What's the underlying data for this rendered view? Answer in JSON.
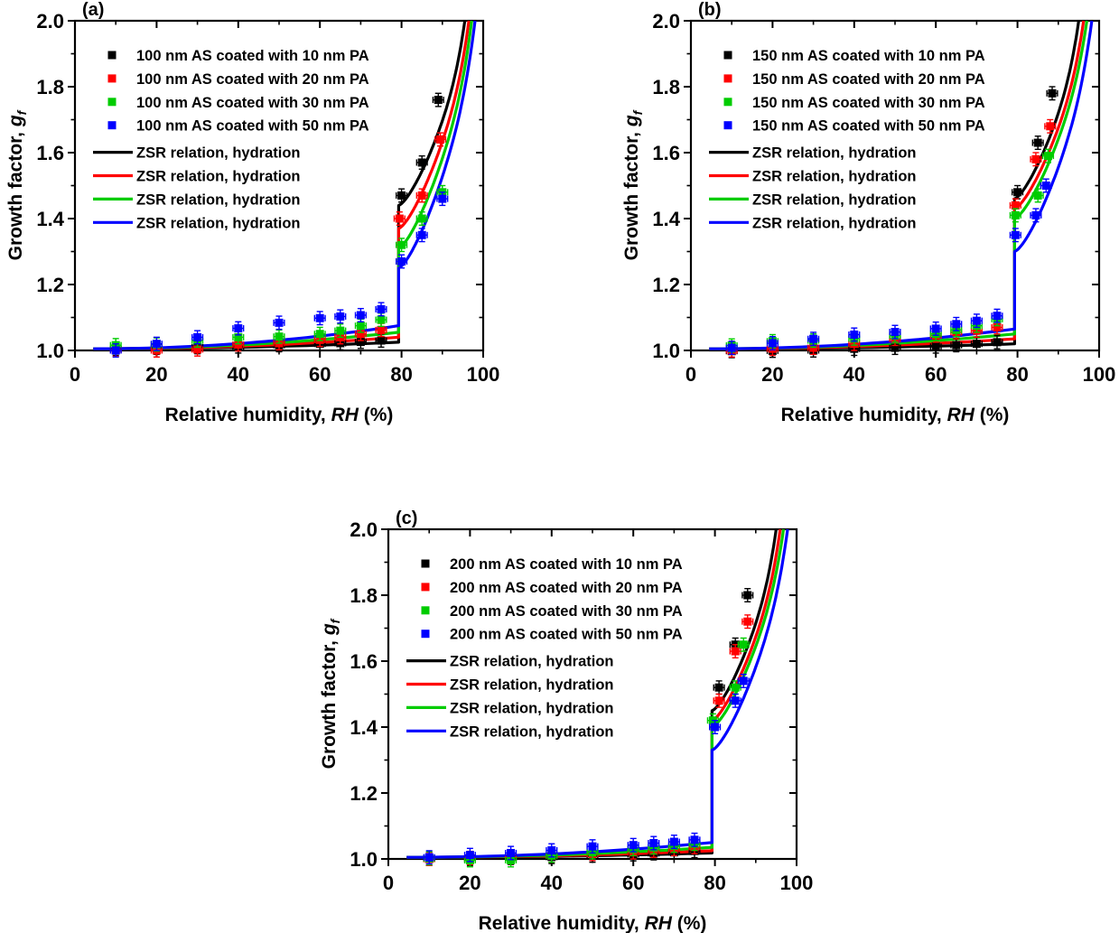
{
  "figure_title": "",
  "colors": {
    "series1": "#000000",
    "series2": "#ff0000",
    "series3": "#00cc00",
    "series4": "#0000ff",
    "axis": "#000000",
    "background": "#ffffff"
  },
  "chart_data": [
    {
      "type": "scatter+line",
      "panel_label": "(a)",
      "xlabel_parts": [
        "Relative humidity, ",
        "RH",
        " (%)"
      ],
      "ylabel_parts": [
        "Growth factor, ",
        "g",
        "f"
      ],
      "xlim": [
        0,
        100
      ],
      "ylim": [
        1.0,
        2.0
      ],
      "x_ticks": [
        0,
        20,
        40,
        60,
        80,
        100
      ],
      "x_tick_labels": [
        "0",
        "20",
        "40",
        "60",
        "80",
        "100"
      ],
      "x_minor_step": 10,
      "y_ticks": [
        1.0,
        1.2,
        1.4,
        1.6,
        1.8,
        2.0
      ],
      "y_tick_labels": [
        "1.0",
        "1.2",
        "1.4",
        "1.6",
        "1.8",
        "2.0"
      ],
      "y_minor_step": 0.1,
      "legend_position": "top-left-inside",
      "grid": false,
      "error_bars": {
        "x": 1.3,
        "y": 0.02
      },
      "scatter_series": [
        {
          "name": "100 nm AS coated with 10 nm PA",
          "color": "#000000",
          "points": [
            [
              10,
              1.005
            ],
            [
              20,
              1.008
            ],
            [
              30,
              1.01
            ],
            [
              40,
              1.012
            ],
            [
              50,
              1.016
            ],
            [
              60,
              1.02
            ],
            [
              65,
              1.022
            ],
            [
              70,
              1.026
            ],
            [
              75,
              1.03
            ],
            [
              80,
              1.47
            ],
            [
              85,
              1.57
            ],
            [
              89,
              1.76
            ]
          ]
        },
        {
          "name": "100 nm AS coated with 20 nm PA",
          "color": "#ff0000",
          "points": [
            [
              10,
              1.002
            ],
            [
              20,
              1.0
            ],
            [
              30,
              1.003
            ],
            [
              40,
              1.018
            ],
            [
              50,
              1.022
            ],
            [
              60,
              1.032
            ],
            [
              65,
              1.04
            ],
            [
              70,
              1.05
            ],
            [
              75,
              1.062
            ],
            [
              79.5,
              1.4
            ],
            [
              85,
              1.47
            ],
            [
              89.5,
              1.64
            ]
          ]
        },
        {
          "name": "100 nm AS coated with 30 nm PA",
          "color": "#00cc00",
          "points": [
            [
              10,
              1.016
            ],
            [
              20,
              1.018
            ],
            [
              30,
              1.03
            ],
            [
              40,
              1.04
            ],
            [
              50,
              1.042
            ],
            [
              60,
              1.05
            ],
            [
              65,
              1.06
            ],
            [
              70,
              1.075
            ],
            [
              75,
              1.093
            ],
            [
              80,
              1.32
            ],
            [
              85,
              1.4
            ],
            [
              90,
              1.48
            ]
          ]
        },
        {
          "name": "100 nm AS coated with 50 nm PA",
          "color": "#0000ff",
          "points": [
            [
              10,
              1.0
            ],
            [
              20,
              1.02
            ],
            [
              30,
              1.04
            ],
            [
              40,
              1.067
            ],
            [
              50,
              1.084
            ],
            [
              60,
              1.098
            ],
            [
              65,
              1.103
            ],
            [
              70,
              1.107
            ],
            [
              75,
              1.125
            ],
            [
              80,
              1.27
            ],
            [
              85,
              1.35
            ],
            [
              90,
              1.46
            ]
          ]
        }
      ],
      "line_series": [
        {
          "name": "ZSR relation, hydration",
          "color": "#000000",
          "start_rh": 4.5,
          "start_gf": 1.005,
          "jump_rh": 79.3,
          "pre_jump_gf": 1.025,
          "jump_top_gf": 1.44,
          "end_rh": 95.5,
          "end_gf": 2.0
        },
        {
          "name": "ZSR relation, hydration",
          "color": "#ff0000",
          "start_rh": 4.5,
          "start_gf": 1.005,
          "jump_rh": 79.3,
          "pre_jump_gf": 1.04,
          "jump_top_gf": 1.37,
          "end_rh": 96.5,
          "end_gf": 2.0
        },
        {
          "name": "ZSR relation, hydration",
          "color": "#00cc00",
          "start_rh": 4.5,
          "start_gf": 1.005,
          "jump_rh": 79.3,
          "pre_jump_gf": 1.055,
          "jump_top_gf": 1.31,
          "end_rh": 97.2,
          "end_gf": 2.0
        },
        {
          "name": "ZSR relation, hydration",
          "color": "#0000ff",
          "start_rh": 4.5,
          "start_gf": 1.005,
          "jump_rh": 79.3,
          "pre_jump_gf": 1.075,
          "jump_top_gf": 1.25,
          "end_rh": 98.0,
          "end_gf": 2.0
        }
      ]
    },
    {
      "type": "scatter+line",
      "panel_label": "(b)",
      "xlabel_parts": [
        "Relative humidity, ",
        "RH",
        " (%)"
      ],
      "ylabel_parts": [
        "Growth factor, ",
        "g",
        "f"
      ],
      "xlim": [
        0,
        100
      ],
      "ylim": [
        1.0,
        2.0
      ],
      "x_ticks": [
        0,
        20,
        40,
        60,
        80,
        100
      ],
      "x_tick_labels": [
        "0",
        "20",
        "40",
        "60",
        "80",
        "100"
      ],
      "x_minor_step": 10,
      "y_ticks": [
        1.0,
        1.2,
        1.4,
        1.6,
        1.8,
        2.0
      ],
      "y_tick_labels": [
        "1.0",
        "1.2",
        "1.4",
        "1.6",
        "1.8",
        "2.0"
      ],
      "y_minor_step": 0.1,
      "legend_position": "top-left-inside",
      "grid": false,
      "error_bars": {
        "x": 1.3,
        "y": 0.02
      },
      "scatter_series": [
        {
          "name": "150 nm AS coated with 10 nm PA",
          "color": "#000000",
          "points": [
            [
              10,
              0.998
            ],
            [
              20,
              0.999
            ],
            [
              30,
              1.0
            ],
            [
              40,
              1.005
            ],
            [
              50,
              1.008
            ],
            [
              60,
              1.012
            ],
            [
              65,
              1.016
            ],
            [
              70,
              1.02
            ],
            [
              75,
              1.025
            ],
            [
              80,
              1.48
            ],
            [
              85,
              1.63
            ],
            [
              88.5,
              1.78
            ]
          ]
        },
        {
          "name": "150 nm AS coated with 20 nm PA",
          "color": "#ff0000",
          "points": [
            [
              10,
              1.0
            ],
            [
              20,
              1.005
            ],
            [
              30,
              1.008
            ],
            [
              40,
              1.02
            ],
            [
              50,
              1.035
            ],
            [
              60,
              1.045
            ],
            [
              65,
              1.055
            ],
            [
              70,
              1.06
            ],
            [
              75,
              1.07
            ],
            [
              79.5,
              1.44
            ],
            [
              84.5,
              1.58
            ],
            [
              88,
              1.68
            ]
          ]
        },
        {
          "name": "150 nm AS coated with 30 nm PA",
          "color": "#00cc00",
          "points": [
            [
              10,
              1.015
            ],
            [
              20,
              1.028
            ],
            [
              30,
              1.03
            ],
            [
              40,
              1.036
            ],
            [
              50,
              1.045
            ],
            [
              60,
              1.05
            ],
            [
              65,
              1.062
            ],
            [
              70,
              1.075
            ],
            [
              75,
              1.095
            ],
            [
              79.5,
              1.41
            ],
            [
              85,
              1.47
            ],
            [
              87.5,
              1.59
            ]
          ]
        },
        {
          "name": "150 nm AS coated with 50 nm PA",
          "color": "#0000ff",
          "points": [
            [
              10,
              1.008
            ],
            [
              20,
              1.022
            ],
            [
              30,
              1.035
            ],
            [
              40,
              1.048
            ],
            [
              50,
              1.056
            ],
            [
              60,
              1.066
            ],
            [
              65,
              1.08
            ],
            [
              70,
              1.09
            ],
            [
              75,
              1.105
            ],
            [
              79.5,
              1.35
            ],
            [
              84.5,
              1.41
            ],
            [
              87,
              1.5
            ]
          ]
        }
      ],
      "line_series": [
        {
          "name": "ZSR relation, hydration",
          "color": "#000000",
          "start_rh": 4.5,
          "start_gf": 1.005,
          "jump_rh": 79.3,
          "pre_jump_gf": 1.02,
          "jump_top_gf": 1.46,
          "end_rh": 95.0,
          "end_gf": 2.0
        },
        {
          "name": "ZSR relation, hydration",
          "color": "#ff0000",
          "start_rh": 4.5,
          "start_gf": 1.005,
          "jump_rh": 79.3,
          "pre_jump_gf": 1.035,
          "jump_top_gf": 1.43,
          "end_rh": 96.2,
          "end_gf": 2.0
        },
        {
          "name": "ZSR relation, hydration",
          "color": "#00cc00",
          "start_rh": 4.5,
          "start_gf": 1.005,
          "jump_rh": 79.3,
          "pre_jump_gf": 1.05,
          "jump_top_gf": 1.4,
          "end_rh": 97.0,
          "end_gf": 2.0
        },
        {
          "name": "ZSR relation, hydration",
          "color": "#0000ff",
          "start_rh": 4.5,
          "start_gf": 1.005,
          "jump_rh": 79.3,
          "pre_jump_gf": 1.065,
          "jump_top_gf": 1.3,
          "end_rh": 98.2,
          "end_gf": 2.0
        }
      ]
    },
    {
      "type": "scatter+line",
      "panel_label": "(c)",
      "xlabel_parts": [
        "Relative humidity, ",
        "RH",
        " (%)"
      ],
      "ylabel_parts": [
        "Growth factor, ",
        "g",
        "f"
      ],
      "xlim": [
        0,
        100
      ],
      "ylim": [
        1.0,
        2.0
      ],
      "x_ticks": [
        0,
        20,
        40,
        60,
        80,
        100
      ],
      "x_tick_labels": [
        "0",
        "20",
        "40",
        "60",
        "80",
        "100"
      ],
      "x_minor_step": 10,
      "y_ticks": [
        1.0,
        1.2,
        1.4,
        1.6,
        1.8,
        2.0
      ],
      "y_tick_labels": [
        "1.0",
        "1.2",
        "1.4",
        "1.6",
        "1.8",
        "2.0"
      ],
      "y_minor_step": 0.1,
      "legend_position": "top-left-inside",
      "grid": false,
      "error_bars": {
        "x": 1.3,
        "y": 0.02
      },
      "scatter_series": [
        {
          "name": "200 nm AS coated with 10 nm PA",
          "color": "#000000",
          "points": [
            [
              10,
              1.0
            ],
            [
              20,
              1.0
            ],
            [
              30,
              1.003
            ],
            [
              40,
              1.006
            ],
            [
              50,
              1.01
            ],
            [
              60,
              1.014
            ],
            [
              65,
              1.017
            ],
            [
              70,
              1.02
            ],
            [
              75,
              1.024
            ],
            [
              81,
              1.52
            ],
            [
              85,
              1.65
            ],
            [
              88,
              1.8
            ]
          ]
        },
        {
          "name": "200 nm AS coated with 20 nm PA",
          "color": "#ff0000",
          "points": [
            [
              10,
              1.0
            ],
            [
              20,
              1.003
            ],
            [
              30,
              1.005
            ],
            [
              40,
              1.01
            ],
            [
              50,
              1.015
            ],
            [
              60,
              1.02
            ],
            [
              65,
              1.025
            ],
            [
              70,
              1.03
            ],
            [
              75,
              1.036
            ],
            [
              81,
              1.48
            ],
            [
              85,
              1.63
            ],
            [
              88,
              1.72
            ]
          ]
        },
        {
          "name": "200 nm AS coated with 30 nm PA",
          "color": "#00cc00",
          "points": [
            [
              10,
              1.002
            ],
            [
              20,
              0.996
            ],
            [
              30,
              0.996
            ],
            [
              40,
              1.01
            ],
            [
              50,
              1.02
            ],
            [
              60,
              1.03
            ],
            [
              65,
              1.035
            ],
            [
              70,
              1.04
            ],
            [
              75,
              1.046
            ],
            [
              79.5,
              1.42
            ],
            [
              85,
              1.52
            ],
            [
              87,
              1.65
            ]
          ]
        },
        {
          "name": "200 nm AS coated with 50 nm PA",
          "color": "#0000ff",
          "points": [
            [
              10,
              1.005
            ],
            [
              20,
              1.012
            ],
            [
              30,
              1.018
            ],
            [
              40,
              1.026
            ],
            [
              50,
              1.038
            ],
            [
              60,
              1.042
            ],
            [
              65,
              1.048
            ],
            [
              70,
              1.052
            ],
            [
              75,
              1.058
            ],
            [
              80,
              1.4
            ],
            [
              85,
              1.48
            ],
            [
              87,
              1.54
            ]
          ]
        }
      ],
      "line_series": [
        {
          "name": "ZSR relation, hydration",
          "color": "#000000",
          "start_rh": 4.5,
          "start_gf": 1.005,
          "jump_rh": 79.3,
          "pre_jump_gf": 1.018,
          "jump_top_gf": 1.45,
          "end_rh": 95.0,
          "end_gf": 2.0
        },
        {
          "name": "ZSR relation, hydration",
          "color": "#ff0000",
          "start_rh": 4.5,
          "start_gf": 1.005,
          "jump_rh": 79.3,
          "pre_jump_gf": 1.025,
          "jump_top_gf": 1.42,
          "end_rh": 96.0,
          "end_gf": 2.0
        },
        {
          "name": "ZSR relation, hydration",
          "color": "#00cc00",
          "start_rh": 4.5,
          "start_gf": 1.005,
          "jump_rh": 79.3,
          "pre_jump_gf": 1.035,
          "jump_top_gf": 1.4,
          "end_rh": 96.8,
          "end_gf": 2.0
        },
        {
          "name": "ZSR relation, hydration",
          "color": "#0000ff",
          "start_rh": 4.5,
          "start_gf": 1.005,
          "jump_rh": 79.3,
          "pre_jump_gf": 1.05,
          "jump_top_gf": 1.33,
          "end_rh": 97.8,
          "end_gf": 2.0
        }
      ]
    }
  ]
}
